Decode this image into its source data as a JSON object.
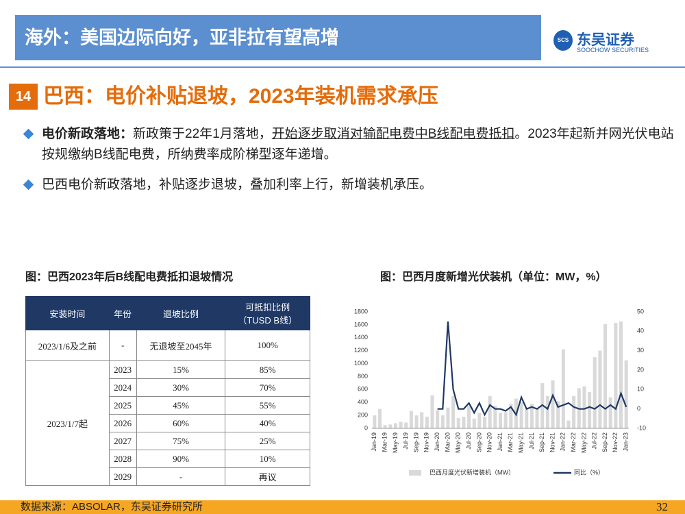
{
  "header": {
    "title": "海外：美国边际向好，亚非拉有望高增",
    "logo_mark": "SCS",
    "logo": "东吴证券",
    "logo_sub": "SOOCHOW SECURITIES"
  },
  "section": {
    "number": "14",
    "title": "巴西：电价补贴退坡，2023年装机需求承压"
  },
  "bullets": [
    {
      "parts": [
        {
          "text": "电价新政落地：",
          "style": "bold"
        },
        {
          "text": "新政策于22年1月落地，",
          "style": "normal"
        },
        {
          "text": "开始逐步取消对输配电费中B线配电费抵扣",
          "style": "underline"
        },
        {
          "text": "。2023年起新并网光伏电站按规缴纳B线配电费，所纳费率成阶梯型逐年递增。",
          "style": "normal"
        }
      ]
    },
    {
      "parts": [
        {
          "text": "巴西电价新政落地，补贴逐步退坡，叠加利率上行，新增装机承压。",
          "style": "normal"
        }
      ]
    }
  ],
  "table": {
    "caption": "图：巴西2023年后B线配电费抵扣退坡情况",
    "headers": [
      "安装时间",
      "年份",
      "退坡比例",
      "可抵扣比例\n（TUSD B线）"
    ],
    "first_row": [
      "2023/1/6及之前",
      "-",
      "无退坡至2045年",
      "100%"
    ],
    "group": {
      "period": "2023/1/7起",
      "rows": [
        [
          "2023",
          "15%",
          "85%"
        ],
        [
          "2024",
          "30%",
          "70%"
        ],
        [
          "2025",
          "45%",
          "55%"
        ],
        [
          "2026",
          "60%",
          "40%"
        ],
        [
          "2027",
          "75%",
          "25%"
        ],
        [
          "2028",
          "90%",
          "10%"
        ],
        [
          "2029",
          "-",
          "再议"
        ]
      ]
    }
  },
  "chart_data": {
    "type": "combo",
    "title": "图：巴西月度新增光伏装机（单位：MW，%）",
    "categories": [
      "Jan-19",
      null,
      "Mar-19",
      null,
      "May-19",
      null,
      "Jul-19",
      null,
      "Sep-19",
      null,
      "Nov-19",
      null,
      "Jan-20",
      null,
      "Mar-20",
      null,
      "May-20",
      null,
      "Jul-20",
      null,
      "Sep-20",
      null,
      "Nov-20",
      null,
      "Jan-21",
      null,
      "Mar-21",
      null,
      "May-21",
      null,
      "Jul-21",
      null,
      "Sep-21",
      null,
      "Nov-21",
      null,
      "Jan-22",
      null,
      "Mar-22",
      null,
      "May-22",
      null,
      "Jul-22",
      null,
      "Sep-22",
      null,
      "Nov-22",
      null,
      "Jan-23"
    ],
    "series": [
      {
        "name": "巴西月度光伏新增装机（MW）",
        "type": "bar",
        "color": "#d9d9d9",
        "values": [
          200,
          300,
          50,
          60,
          80,
          100,
          90,
          270,
          200,
          250,
          180,
          510,
          280,
          200,
          320,
          500,
          160,
          180,
          340,
          150,
          240,
          180,
          500,
          350,
          240,
          250,
          380,
          460,
          400,
          300,
          380,
          300,
          700,
          500,
          740,
          420,
          1220,
          120,
          500,
          620,
          650,
          560,
          1100,
          1200,
          1610,
          480,
          1630,
          1650,
          1050
        ]
      },
      {
        "name": "同比（%）",
        "type": "line",
        "axis": "y2",
        "color": "#1f3864",
        "values": [
          null,
          null,
          null,
          null,
          null,
          null,
          null,
          null,
          null,
          null,
          null,
          null,
          0,
          0,
          45,
          10,
          0,
          0,
          3,
          -2,
          3,
          -3,
          2,
          0,
          0,
          -1,
          1,
          -3,
          6,
          0,
          1,
          0,
          2,
          0,
          7,
          1,
          2,
          3,
          1,
          0,
          0,
          1,
          0,
          2,
          0,
          2,
          0,
          8,
          1
        ]
      }
    ],
    "ylim": [
      0,
      1800
    ],
    "yticks": [
      0,
      200,
      400,
      600,
      800,
      1000,
      1200,
      1400,
      1600,
      1800
    ],
    "y2lim": [
      -10,
      50
    ],
    "y2ticks": [
      -10,
      0,
      10,
      20,
      30,
      40,
      50
    ],
    "legend": "bottom"
  },
  "footer": {
    "source": "数据来源：ABSOLAR，东吴证券研究所",
    "page": "32"
  }
}
